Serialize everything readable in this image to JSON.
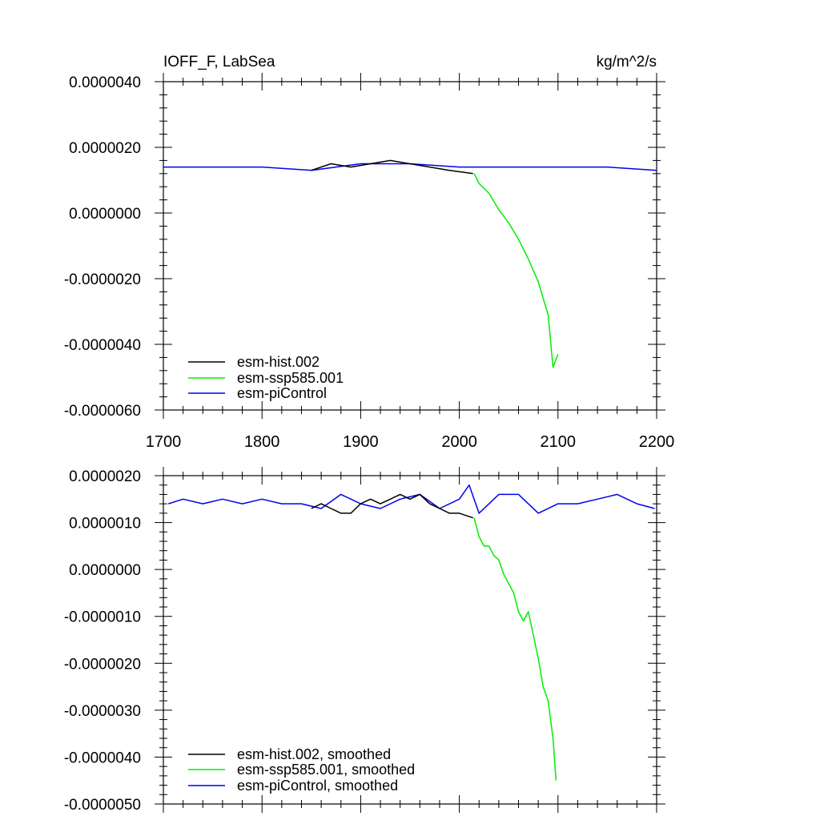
{
  "header": {
    "title_left": "IOFF_F, LabSea",
    "title_right": "kg/m^2/s"
  },
  "colors": {
    "hist": "#000000",
    "ssp": "#00ee00",
    "pi": "#0000ee"
  },
  "chart_data": [
    {
      "type": "line",
      "title": "IOFF_F, LabSea",
      "units": "kg/m^2/s",
      "xlim": [
        1700,
        2200
      ],
      "ylim": [
        -6e-06,
        4e-06
      ],
      "x_ticks": [
        1700,
        1800,
        1900,
        2000,
        2100,
        2200
      ],
      "x_tick_labels": [
        "1700",
        "1800",
        "1900",
        "2000",
        "2100",
        "2200"
      ],
      "y_ticks": [
        -6e-06,
        -4e-06,
        -2e-06,
        0,
        2e-06,
        4e-06
      ],
      "y_tick_labels": [
        "-0.0000060",
        "-0.0000040",
        "-0.0000020",
        "0.0000000",
        "0.0000020",
        "0.0000040"
      ],
      "legend_position": "bottom-left",
      "series": [
        {
          "name": "esm-hist.002",
          "color": "#000000",
          "x": [
            1850,
            1870,
            1890,
            1910,
            1930,
            1950,
            1970,
            1990,
            2014
          ],
          "y": [
            1.3e-06,
            1.5e-06,
            1.4e-06,
            1.5e-06,
            1.6e-06,
            1.5e-06,
            1.4e-06,
            1.3e-06,
            1.2e-06
          ]
        },
        {
          "name": "esm-ssp585.001",
          "color": "#00ee00",
          "x": [
            2015,
            2020,
            2030,
            2040,
            2050,
            2060,
            2070,
            2080,
            2090,
            2095,
            2100
          ],
          "y": [
            1.2e-06,
            9e-07,
            6e-07,
            1e-07,
            -3e-07,
            -8e-07,
            -1.4e-06,
            -2.1e-06,
            -3.1e-06,
            -4.7e-06,
            -4.3e-06
          ]
        },
        {
          "name": "esm-piControl",
          "color": "#0000ee",
          "x": [
            1700,
            1750,
            1800,
            1850,
            1900,
            1950,
            2000,
            2050,
            2100,
            2150,
            2200
          ],
          "y": [
            1.4e-06,
            1.4e-06,
            1.4e-06,
            1.3e-06,
            1.5e-06,
            1.5e-06,
            1.4e-06,
            1.4e-06,
            1.4e-06,
            1.4e-06,
            1.3e-06
          ]
        }
      ]
    },
    {
      "type": "line",
      "xlim": [
        1700,
        2200
      ],
      "ylim": [
        -5e-06,
        2e-06
      ],
      "x_ticks": [
        1700,
        1800,
        1900,
        2000,
        2100,
        2200
      ],
      "y_ticks": [
        -5e-06,
        -4e-06,
        -3e-06,
        -2e-06,
        -1e-06,
        0,
        1e-06,
        2e-06
      ],
      "y_tick_labels": [
        "-0.0000050",
        "-0.0000040",
        "-0.0000030",
        "-0.0000020",
        "-0.0000010",
        "0.0000000",
        "0.0000010",
        "0.0000020"
      ],
      "legend_position": "bottom-left",
      "series": [
        {
          "name": "esm-hist.002, smoothed",
          "color": "#000000",
          "x": [
            1850,
            1860,
            1870,
            1880,
            1890,
            1900,
            1910,
            1920,
            1930,
            1940,
            1950,
            1960,
            1970,
            1980,
            1990,
            2000,
            2014
          ],
          "y": [
            1.3e-06,
            1.4e-06,
            1.3e-06,
            1.2e-06,
            1.2e-06,
            1.4e-06,
            1.5e-06,
            1.4e-06,
            1.5e-06,
            1.6e-06,
            1.5e-06,
            1.6e-06,
            1.4e-06,
            1.3e-06,
            1.2e-06,
            1.2e-06,
            1.1e-06
          ]
        },
        {
          "name": "esm-ssp585.001, smoothed",
          "color": "#00ee00",
          "x": [
            2015,
            2020,
            2025,
            2030,
            2035,
            2040,
            2045,
            2050,
            2055,
            2060,
            2065,
            2070,
            2075,
            2080,
            2085,
            2090,
            2095,
            2098
          ],
          "y": [
            1.1e-06,
            7e-07,
            5e-07,
            5e-07,
            3e-07,
            2e-07,
            -1e-07,
            -3e-07,
            -5e-07,
            -9e-07,
            -1.1e-06,
            -9e-07,
            -1.4e-06,
            -1.9e-06,
            -2.5e-06,
            -2.8e-06,
            -3.6e-06,
            -4.5e-06
          ]
        },
        {
          "name": "esm-piControl, smoothed",
          "color": "#0000ee",
          "x": [
            1705,
            1720,
            1740,
            1760,
            1780,
            1800,
            1820,
            1840,
            1860,
            1880,
            1900,
            1920,
            1940,
            1960,
            1980,
            2000,
            2010,
            2020,
            2040,
            2060,
            2080,
            2100,
            2120,
            2140,
            2160,
            2180,
            2198
          ],
          "y": [
            1.4e-06,
            1.5e-06,
            1.4e-06,
            1.5e-06,
            1.4e-06,
            1.5e-06,
            1.4e-06,
            1.4e-06,
            1.3e-06,
            1.6e-06,
            1.4e-06,
            1.3e-06,
            1.5e-06,
            1.6e-06,
            1.3e-06,
            1.5e-06,
            1.8e-06,
            1.2e-06,
            1.6e-06,
            1.6e-06,
            1.2e-06,
            1.4e-06,
            1.4e-06,
            1.5e-06,
            1.6e-06,
            1.4e-06,
            1.3e-06
          ]
        }
      ]
    }
  ]
}
